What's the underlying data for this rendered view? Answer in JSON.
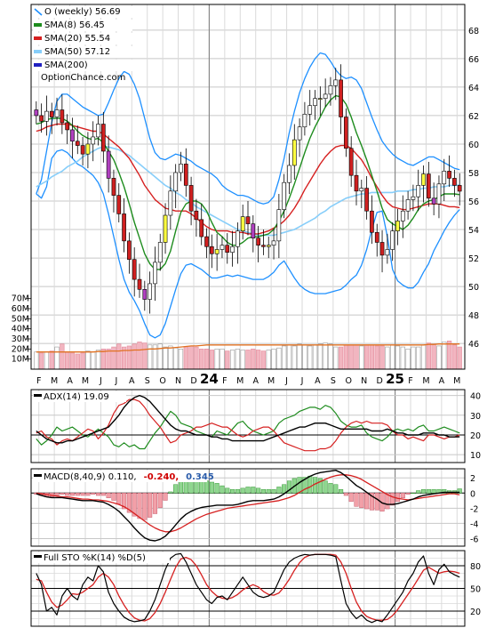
{
  "chart_data": {
    "type": "candlestick",
    "panels": {
      "price": {
        "legend": [
          {
            "label": "O (weekly) 56.69",
            "color": "#1e90ff",
            "key": "price"
          },
          {
            "label": "SMA(8) 56.45",
            "color": "#1e8c1e",
            "key": "sma8"
          },
          {
            "label": "SMA(20) 55.54",
            "color": "#d62020",
            "key": "sma20"
          },
          {
            "label": "SMA(50) 57.12",
            "color": "#87cefa",
            "key": "sma50"
          },
          {
            "label": "SMA(200)",
            "color": "#2020c0",
            "key": "sma200"
          }
        ],
        "source_label": "OptionChance.com",
        "y_ticks": [
          46,
          48,
          50,
          52,
          54,
          56,
          58,
          60,
          62,
          64,
          66,
          68
        ],
        "ylim": [
          44.2,
          69.8
        ]
      },
      "volume": {
        "y_ticks": [
          "10M",
          "20M",
          "30M",
          "40M",
          "50M",
          "60M",
          "70M"
        ]
      },
      "x_axis": {
        "labels": [
          "F",
          "M",
          "A",
          "M",
          "J",
          "J",
          "A",
          "S",
          "O",
          "N",
          "D",
          "24",
          "F",
          "M",
          "A",
          "M",
          "J",
          "J",
          "A",
          "S",
          "O",
          "N",
          "D",
          "25",
          "F",
          "M",
          "A",
          "M"
        ]
      },
      "adx": {
        "label": "ADX(14) 19.09",
        "y_ticks": [
          10,
          20,
          30,
          40
        ],
        "ylim": [
          6,
          43
        ]
      },
      "macd": {
        "label_prefix": "MACD(8,40,9) 0.110,",
        "value_red": "-0.240,",
        "value_blue": "0.345",
        "y_ticks": [
          -6,
          -4,
          -2,
          0,
          2
        ],
        "ylim": [
          -7,
          3.2
        ]
      },
      "sto": {
        "label": "Full STO %K(14) %D(5)",
        "y_ticks": [
          20,
          50,
          80
        ],
        "ylim": [
          0,
          100
        ]
      }
    },
    "close": [
      62.0,
      61.6,
      62.3,
      61.9,
      62.4,
      61.5,
      61.0,
      60.2,
      59.9,
      59.3,
      60.0,
      60.5,
      61.4,
      59.5,
      57.6,
      56.4,
      55.1,
      53.2,
      51.9,
      50.5,
      49.8,
      49.1,
      50.2,
      51.7,
      53.1,
      55.0,
      56.7,
      58.0,
      58.6,
      57.1,
      55.3,
      54.7,
      53.5,
      52.8,
      52.3,
      52.6,
      52.9,
      52.4,
      52.8,
      53.9,
      54.9,
      54.4,
      53.4,
      52.9,
      52.8,
      52.9,
      53.2,
      55.4,
      57.3,
      58.5,
      60.3,
      61.2,
      62.1,
      62.7,
      63.2,
      63.2,
      63.5,
      64.1,
      64.5,
      61.9,
      59.7,
      57.8,
      56.7,
      56.9,
      55.3,
      53.8,
      53.1,
      52.2,
      52.6,
      53.9,
      54.6,
      55.3,
      56.1,
      56.3,
      57.1,
      57.9,
      56.2,
      55.8,
      57.2,
      58.1,
      57.6,
      57.1,
      56.69
    ],
    "sma8": [
      61.4,
      61.5,
      61.7,
      61.8,
      61.8,
      61.8,
      61.6,
      61.3,
      60.9,
      60.6,
      60.4,
      60.3,
      60.4,
      60.1,
      59.5,
      58.9,
      58.0,
      57.0,
      55.8,
      54.5,
      53.4,
      52.3,
      51.6,
      51.2,
      51.2,
      51.6,
      52.5,
      53.9,
      55.2,
      55.8,
      56.0,
      56.0,
      55.8,
      55.3,
      54.5,
      53.8,
      53.5,
      53.1,
      52.9,
      52.9,
      53.1,
      53.4,
      53.5,
      53.5,
      53.6,
      53.7,
      54.0,
      54.6,
      55.3,
      56.2,
      57.2,
      58.3,
      59.4,
      60.4,
      61.2,
      61.9,
      62.6,
      63.1,
      63.4,
      63.3,
      62.8,
      61.9,
      60.8,
      59.9,
      58.9,
      57.8,
      56.7,
      55.5,
      54.7,
      54.4,
      54.2,
      54.0,
      54.3,
      54.8,
      55.4,
      55.8,
      56.0,
      56.1,
      56.3,
      56.5,
      56.5,
      56.5,
      56.45
    ],
    "sma20": [
      60.9,
      61.0,
      61.2,
      61.3,
      61.4,
      61.4,
      61.4,
      61.3,
      61.2,
      61.1,
      61.0,
      60.9,
      60.9,
      60.7,
      60.4,
      60.1,
      59.8,
      59.4,
      59.0,
      58.4,
      57.8,
      57.1,
      56.6,
      56.1,
      55.8,
      55.5,
      55.4,
      55.3,
      55.3,
      55.3,
      55.1,
      54.8,
      54.5,
      54.2,
      54.0,
      53.9,
      53.9,
      53.9,
      53.8,
      53.8,
      53.8,
      53.7,
      53.7,
      53.7,
      53.8,
      53.9,
      54.1,
      54.3,
      54.6,
      55.0,
      55.5,
      56.1,
      56.8,
      57.4,
      58.0,
      58.6,
      59.1,
      59.5,
      59.8,
      59.9,
      59.9,
      59.7,
      59.3,
      58.9,
      58.3,
      57.6,
      57.0,
      56.4,
      55.9,
      55.6,
      55.5,
      55.4,
      55.4,
      55.5,
      55.6,
      55.7,
      55.8,
      55.8,
      55.8,
      55.7,
      55.6,
      55.6,
      55.54
    ],
    "upper": [
      56.5,
      57.5,
      59.5,
      61.5,
      63.0,
      63.5,
      63.5,
      63.2,
      62.9,
      62.6,
      62.4,
      62.2,
      62.0,
      62.1,
      62.9,
      63.8,
      64.6,
      65.1,
      64.9,
      64.2,
      63.2,
      61.8,
      60.4,
      59.4,
      59.0,
      58.9,
      59.1,
      59.3,
      59.2,
      59.0,
      58.8,
      58.5,
      58.3,
      58.1,
      57.9,
      57.6,
      57.1,
      56.8,
      56.6,
      56.4,
      56.4,
      56.3,
      56.1,
      55.9,
      55.8,
      55.9,
      56.3,
      57.5,
      59.0,
      60.8,
      62.3,
      63.6,
      64.6,
      65.4,
      66.0,
      66.4,
      66.3,
      65.8,
      65.2,
      64.8,
      64.6,
      64.7,
      64.5,
      63.9,
      62.9,
      61.9,
      61.0,
      60.2,
      59.7,
      59.3,
      59.0,
      58.8,
      58.6,
      58.5,
      58.7,
      58.9,
      59.1,
      59.1,
      58.9,
      58.7,
      58.5,
      58.3,
      58.2
    ],
    "lower": [
      56.5,
      56.2,
      57.0,
      59.0,
      59.5,
      59.6,
      59.4,
      59.0,
      58.6,
      58.4,
      58.1,
      57.8,
      57.3,
      56.5,
      55.1,
      53.5,
      51.9,
      50.5,
      49.6,
      49.0,
      48.3,
      47.4,
      46.6,
      46.4,
      46.6,
      47.4,
      48.6,
      49.8,
      50.9,
      51.5,
      51.6,
      51.4,
      51.2,
      50.9,
      50.6,
      50.6,
      50.7,
      50.8,
      50.7,
      50.8,
      50.7,
      50.6,
      50.5,
      50.5,
      50.5,
      50.7,
      51.0,
      51.5,
      51.8,
      51.2,
      50.6,
      50.1,
      49.8,
      49.6,
      49.5,
      49.5,
      49.5,
      49.6,
      49.7,
      49.8,
      50.1,
      50.5,
      50.8,
      51.5,
      52.6,
      54.0,
      55.2,
      55.3,
      53.5,
      51.2,
      50.4,
      50.1,
      49.9,
      49.9,
      50.3,
      51.0,
      51.6,
      52.5,
      53.2,
      53.9,
      54.5,
      55.0,
      55.4
    ],
    "sma50": [
      57.0,
      57.2,
      57.4,
      57.7,
      57.9,
      58.1,
      58.4,
      58.6,
      58.8,
      59.1,
      59.3,
      59.5,
      59.7,
      59.8,
      59.8,
      59.7,
      59.6,
      59.4,
      59.2,
      58.9,
      58.6,
      58.3,
      58.0,
      57.7,
      57.4,
      57.1,
      56.9,
      56.6,
      56.4,
      56.1,
      55.9,
      55.6,
      55.4,
      55.2,
      55.0,
      54.8,
      54.6,
      54.4,
      54.2,
      54.0,
      53.9,
      53.8,
      53.7,
      53.6,
      53.6,
      53.6,
      53.6,
      53.7,
      53.8,
      53.9,
      54.0,
      54.2,
      54.4,
      54.6,
      54.8,
      55.1,
      55.3,
      55.6,
      55.8,
      56.0,
      56.2,
      56.3,
      56.4,
      56.5,
      56.5,
      56.6,
      56.6,
      56.6,
      56.6,
      56.6,
      56.7,
      56.7,
      56.7,
      56.8,
      56.8,
      56.9,
      56.9,
      57.0,
      57.0,
      57.0,
      57.1,
      57.1,
      57.12
    ],
    "volume_M": [
      17,
      16,
      17,
      18,
      22,
      25,
      17,
      16,
      15,
      16,
      18,
      17,
      19,
      20,
      20,
      22,
      25,
      22,
      23,
      25,
      27,
      26,
      24,
      24,
      25,
      22,
      23,
      21,
      20,
      22,
      23,
      22,
      20,
      20,
      19,
      20,
      20,
      18,
      19,
      20,
      19,
      19,
      20,
      19,
      18,
      19,
      20,
      21,
      23,
      24,
      23,
      25,
      24,
      23,
      24,
      25,
      26,
      25,
      22,
      22,
      24,
      24,
      24,
      23,
      24,
      24,
      23,
      23,
      22,
      24,
      23,
      22,
      20,
      22,
      22,
      24,
      26,
      25,
      23,
      27,
      28,
      24,
      22
    ],
    "volume_avg_M": [
      17,
      17,
      17,
      17,
      17,
      17,
      17,
      17,
      17,
      17,
      17,
      17,
      17.5,
      17.5,
      18,
      18,
      18,
      18.5,
      18.5,
      19,
      19,
      19.5,
      20,
      20,
      20.5,
      21,
      21,
      21.5,
      22,
      22.5,
      23,
      23,
      23.5,
      24,
      24,
      24,
      24,
      24,
      24,
      24,
      24,
      24,
      24,
      24,
      24,
      24,
      24,
      24,
      24,
      24,
      24,
      24,
      24,
      24,
      24,
      24,
      24,
      24,
      24,
      24,
      24,
      24,
      24,
      24,
      24,
      24,
      24,
      24,
      24,
      24,
      24,
      24,
      24,
      24,
      24,
      24,
      24.5,
      24.5,
      25,
      25,
      25,
      25,
      25
    ],
    "adx": [
      22,
      20,
      18,
      17,
      16,
      16,
      17,
      17,
      18,
      19,
      20,
      21,
      22,
      23,
      24,
      27,
      30,
      34,
      37,
      39,
      40,
      39,
      37,
      34,
      31,
      28,
      25,
      23,
      22,
      22,
      21,
      20,
      20,
      20,
      19,
      19,
      18,
      18,
      17,
      17,
      17,
      17,
      17,
      17,
      17,
      18,
      19,
      20,
      21,
      22,
      23,
      24,
      24,
      25,
      26,
      26,
      26,
      25,
      24,
      23,
      23,
      23,
      23,
      23,
      23,
      22,
      22,
      22,
      23,
      22,
      21,
      21,
      20,
      20,
      20,
      21,
      21,
      21,
      20,
      20,
      19,
      19,
      19.09
    ],
    "diplus": [
      18,
      15,
      17,
      20,
      24,
      22,
      23,
      24,
      22,
      20,
      19,
      21,
      23,
      21,
      19,
      15,
      14,
      16,
      14,
      15,
      13,
      13,
      17,
      21,
      24,
      28,
      32,
      30,
      26,
      25,
      24,
      22,
      21,
      20,
      19,
      22,
      21,
      20,
      23,
      26,
      27,
      24,
      22,
      21,
      20,
      21,
      22,
      26,
      28,
      29,
      30,
      32,
      33,
      34,
      34,
      33,
      35,
      34,
      31,
      27,
      25,
      24,
      24,
      25,
      21,
      19,
      18,
      17,
      19,
      22,
      23,
      22,
      23,
      22,
      24,
      25,
      22,
      22,
      23,
      24,
      23,
      22,
      21
    ],
    "diminus": [
      21,
      22,
      19,
      18,
      15,
      17,
      18,
      17,
      19,
      21,
      23,
      22,
      18,
      21,
      25,
      31,
      35,
      36,
      38,
      38,
      37,
      34,
      30,
      27,
      24,
      20,
      16,
      17,
      20,
      21,
      22,
      24,
      24,
      25,
      26,
      25,
      24,
      24,
      22,
      20,
      19,
      20,
      22,
      23,
      24,
      24,
      22,
      19,
      16,
      15,
      14,
      13,
      12,
      12,
      12,
      13,
      13,
      14,
      17,
      21,
      24,
      26,
      27,
      26,
      27,
      26,
      26,
      26,
      25,
      22,
      20,
      20,
      18,
      19,
      18,
      17,
      20,
      20,
      19,
      18,
      19,
      19,
      20
    ],
    "macd": [
      -0.1,
      -0.3,
      -0.5,
      -0.6,
      -0.6,
      -0.6,
      -0.7,
      -0.8,
      -0.9,
      -1.0,
      -1.0,
      -1.0,
      -1.1,
      -1.2,
      -1.5,
      -1.9,
      -2.4,
      -3.1,
      -3.8,
      -4.6,
      -5.3,
      -5.9,
      -6.2,
      -6.3,
      -6.1,
      -5.7,
      -5.0,
      -4.2,
      -3.4,
      -2.8,
      -2.4,
      -2.1,
      -1.9,
      -1.8,
      -1.7,
      -1.6,
      -1.6,
      -1.6,
      -1.6,
      -1.5,
      -1.3,
      -1.1,
      -1.0,
      -1.0,
      -1.0,
      -0.9,
      -0.8,
      -0.5,
      -0.1,
      0.4,
      0.9,
      1.4,
      1.8,
      2.2,
      2.5,
      2.7,
      2.8,
      2.9,
      3.0,
      2.7,
      2.2,
      1.6,
      1.0,
      0.6,
      0.1,
      -0.4,
      -0.8,
      -1.3,
      -1.5,
      -1.5,
      -1.4,
      -1.2,
      -1.0,
      -0.8,
      -0.5,
      -0.3,
      -0.2,
      -0.1,
      0.0,
      0.1,
      0.1,
      0.1,
      0.11
    ],
    "macd_signal": [
      0.0,
      -0.1,
      -0.2,
      -0.3,
      -0.4,
      -0.5,
      -0.5,
      -0.6,
      -0.7,
      -0.8,
      -0.8,
      -0.9,
      -0.9,
      -1.0,
      -1.1,
      -1.3,
      -1.5,
      -1.8,
      -2.2,
      -2.7,
      -3.2,
      -3.7,
      -4.2,
      -4.6,
      -4.9,
      -5.1,
      -5.1,
      -4.9,
      -4.6,
      -4.2,
      -3.8,
      -3.4,
      -3.1,
      -2.8,
      -2.6,
      -2.4,
      -2.2,
      -2.0,
      -1.9,
      -1.8,
      -1.7,
      -1.6,
      -1.5,
      -1.4,
      -1.3,
      -1.2,
      -1.1,
      -1.0,
      -0.8,
      -0.6,
      -0.3,
      0.1,
      0.5,
      0.8,
      1.2,
      1.5,
      1.8,
      2.1,
      2.3,
      2.4,
      2.4,
      2.3,
      2.1,
      1.8,
      1.4,
      1.0,
      0.6,
      0.2,
      -0.2,
      -0.5,
      -0.7,
      -0.8,
      -0.9,
      -0.8,
      -0.7,
      -0.6,
      -0.5,
      -0.4,
      -0.3,
      -0.2,
      -0.1,
      -0.1,
      -0.24
    ],
    "stoK": [
      70,
      55,
      20,
      25,
      15,
      40,
      50,
      40,
      35,
      55,
      65,
      60,
      80,
      72,
      45,
      30,
      20,
      12,
      8,
      6,
      7,
      9,
      20,
      35,
      55,
      75,
      90,
      95,
      96,
      85,
      70,
      55,
      45,
      35,
      30,
      38,
      40,
      35,
      45,
      55,
      65,
      55,
      45,
      40,
      38,
      40,
      45,
      60,
      75,
      85,
      90,
      93,
      95,
      94,
      95,
      95,
      95,
      94,
      92,
      60,
      30,
      18,
      10,
      15,
      8,
      5,
      8,
      6,
      15,
      25,
      35,
      45,
      60,
      70,
      85,
      93,
      70,
      55,
      75,
      82,
      72,
      68,
      65
    ],
    "stoD": [
      62,
      60,
      45,
      32,
      25,
      28,
      35,
      43,
      42,
      45,
      50,
      55,
      65,
      70,
      65,
      55,
      40,
      28,
      18,
      11,
      8,
      7,
      10,
      18,
      30,
      45,
      62,
      78,
      89,
      91,
      88,
      80,
      68,
      55,
      46,
      40,
      37,
      36,
      38,
      42,
      48,
      52,
      55,
      52,
      46,
      42,
      41,
      44,
      52,
      62,
      74,
      84,
      91,
      94,
      95,
      95,
      95,
      95,
      94,
      85,
      70,
      50,
      32,
      20,
      13,
      10,
      8,
      8,
      9,
      14,
      22,
      32,
      42,
      52,
      63,
      74,
      78,
      74,
      70,
      72,
      73,
      72,
      70
    ]
  }
}
